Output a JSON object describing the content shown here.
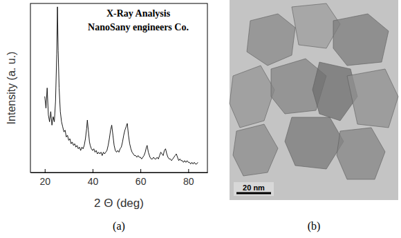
{
  "chart_data": {
    "type": "line",
    "annotations": [
      "X-Ray Analysis",
      "NanoSany engineers Co."
    ],
    "x_label": "2 Θ (deg)",
    "y_label": "Intensity (a. u.)",
    "panel": "(a)",
    "x": [
      20,
      20.5,
      21,
      21.5,
      22,
      22.5,
      23,
      23.5,
      24,
      24.5,
      25,
      25.3,
      25.6,
      26,
      26.5,
      27,
      27.5,
      28,
      28.5,
      29,
      29.5,
      30,
      30.5,
      31,
      31.5,
      32,
      32.5,
      33,
      33.5,
      34,
      34.5,
      35,
      35.5,
      36,
      36.5,
      37,
      37.5,
      37.8,
      38.2,
      38.7,
      39,
      39.5,
      40,
      40.5,
      41,
      41.5,
      42,
      42.5,
      43,
      43.5,
      44,
      44.5,
      45,
      45.5,
      46,
      46.5,
      47,
      47.5,
      48,
      48.5,
      49,
      49.5,
      50,
      50.5,
      51,
      51.5,
      52,
      52.5,
      53,
      53.5,
      54,
      54.5,
      55,
      55.5,
      56,
      56.5,
      57,
      57.5,
      58,
      58.5,
      59,
      59.5,
      60,
      60.5,
      61,
      61.5,
      62,
      62.5,
      62.8,
      63.3,
      64,
      64.5,
      65,
      65.5,
      66,
      66.5,
      67,
      67.5,
      68,
      68.5,
      69,
      69.5,
      70,
      70.5,
      71,
      71.5,
      72,
      72.5,
      73,
      73.5,
      74,
      74.5,
      75,
      75.5,
      76,
      76.5,
      77,
      77.5,
      78,
      78.5,
      79,
      79.5,
      80,
      80.5,
      81,
      81.5,
      82,
      82.5,
      83,
      83.5,
      84
    ],
    "values": [
      45,
      38,
      50,
      34,
      30,
      36,
      28,
      33,
      30,
      42,
      70,
      98,
      72,
      50,
      36,
      30,
      27,
      24,
      25,
      21,
      22,
      19,
      20,
      17,
      18,
      16,
      17,
      15,
      16,
      14,
      15,
      13,
      15,
      14,
      16,
      20,
      26,
      31,
      25,
      18,
      16,
      14,
      13,
      14,
      12,
      13,
      11,
      12,
      11,
      12,
      10,
      12,
      11,
      12,
      13,
      16,
      20,
      25,
      28,
      22,
      16,
      13,
      12,
      13,
      12,
      14,
      15,
      18,
      22,
      25,
      27,
      29,
      22,
      17,
      14,
      12,
      11,
      10,
      10,
      9,
      10,
      9,
      9,
      8,
      9,
      10,
      12,
      15,
      16,
      12,
      9,
      8,
      8,
      9,
      8,
      8,
      9,
      8,
      10,
      12,
      11,
      10,
      13,
      14,
      11,
      9,
      8,
      8,
      7,
      8,
      9,
      10,
      11,
      9,
      7,
      8,
      7,
      7,
      6,
      7,
      6,
      7,
      6,
      6,
      5,
      6,
      5,
      6,
      5,
      5,
      6
    ],
    "color": "#000000",
    "xlim": [
      14,
      88
    ],
    "xticks": [
      20,
      40,
      60,
      80
    ],
    "ylim": [
      0,
      100
    ],
    "tick_labels": "x",
    "grid": false
  },
  "image_panel": {
    "panel": "(b)",
    "scale_bar": "20 nm"
  }
}
